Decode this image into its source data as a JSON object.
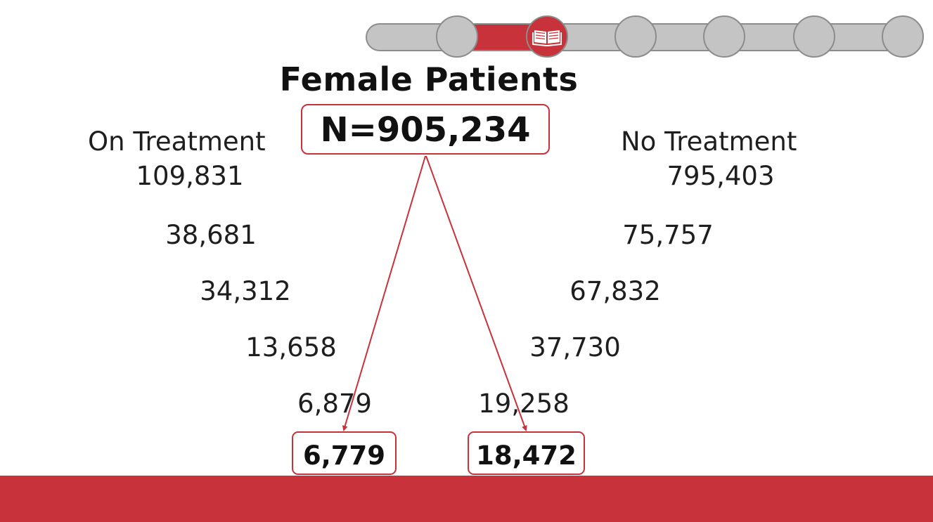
{
  "colors": {
    "accent": "#c8323a",
    "track": "#c4c4c4",
    "track_border": "#8c8c8c",
    "text": "#1e1e1e"
  },
  "progress": {
    "total_steps": 7,
    "current_step": 2,
    "current_step_icon": "open-book-icon"
  },
  "diagram": {
    "title": "Female Patients",
    "total": "N=905,234",
    "left": {
      "label": "On Treatment",
      "values": [
        "109,831",
        "38,681",
        "34,312",
        "13,658",
        "6,879"
      ],
      "final": "6,779"
    },
    "right": {
      "label": "No Treatment",
      "values": [
        "795,403",
        "75,757",
        "67,832",
        "37,730",
        "19,258"
      ],
      "final": "18,472"
    }
  }
}
